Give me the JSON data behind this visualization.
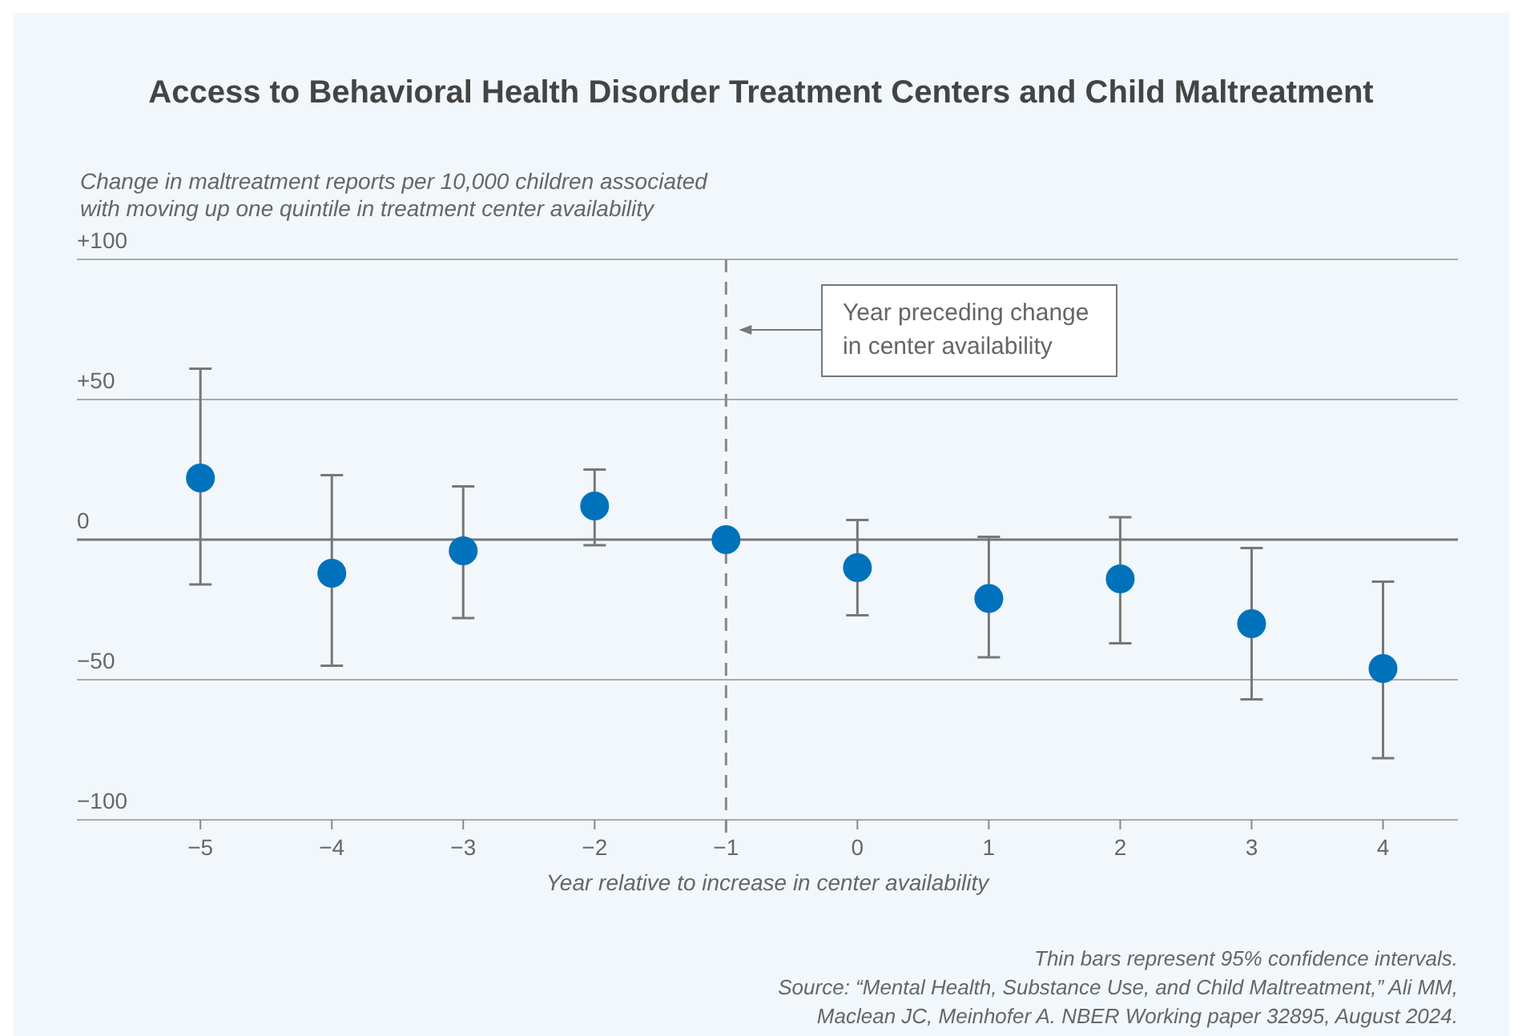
{
  "chart_data": {
    "type": "scatter",
    "title": "Access to Behavioral Health Disorder Treatment Centers and Child Maltreatment",
    "ylabel": "Change in maltreatment reports per 10,000 children associated\nwith moving up one quintile in treatment center availability",
    "xlabel": "Year relative to increase in center availability",
    "x": [
      -5,
      -4,
      -3,
      -2,
      -1,
      0,
      1,
      2,
      3,
      4
    ],
    "series": [
      {
        "color": "#0072bc",
        "values": [
          22,
          -12,
          -4,
          12,
          0,
          -10,
          -21,
          -14,
          -30,
          -46
        ],
        "errors": [
          [
            -16,
            61
          ],
          [
            -45,
            23
          ],
          [
            -28,
            19
          ],
          [
            -2,
            25
          ],
          null,
          [
            -27,
            7
          ],
          [
            -42,
            1
          ],
          [
            -37,
            8
          ],
          [
            -57,
            -3
          ],
          [
            -78,
            -15
          ]
        ]
      }
    ],
    "xlim": [
      -5.94,
      4.57
    ],
    "ylim": [
      -100,
      100
    ],
    "xticks": [
      {
        "value": -5,
        "label": "−5"
      },
      {
        "value": -4,
        "label": "−4"
      },
      {
        "value": -3,
        "label": "−3"
      },
      {
        "value": -2,
        "label": "−2"
      },
      {
        "value": -1,
        "label": "−1"
      },
      0,
      1,
      2,
      3,
      4
    ],
    "yticks": [
      {
        "value": -100,
        "label": "−100"
      },
      {
        "value": -50,
        "label": "−50"
      },
      0,
      {
        "value": 50,
        "label": "+50"
      },
      {
        "value": 100,
        "label": "+100"
      }
    ],
    "grid": "y",
    "marker": "circle",
    "ref_lines": [
      {
        "axis": "x",
        "value": -1,
        "label": "Year preceding change\nin center availability",
        "color": "#888888",
        "line_style": "dashed"
      }
    ],
    "annotations": [
      "Thin bars represent 95% confidence intervals.",
      "Source: “Mental Health, Substance Use, and Child Maltreatment,” Ali MM,",
      "Maclean JC, Meinhofer A. NBER Working paper 32895, August 2024."
    ]
  }
}
